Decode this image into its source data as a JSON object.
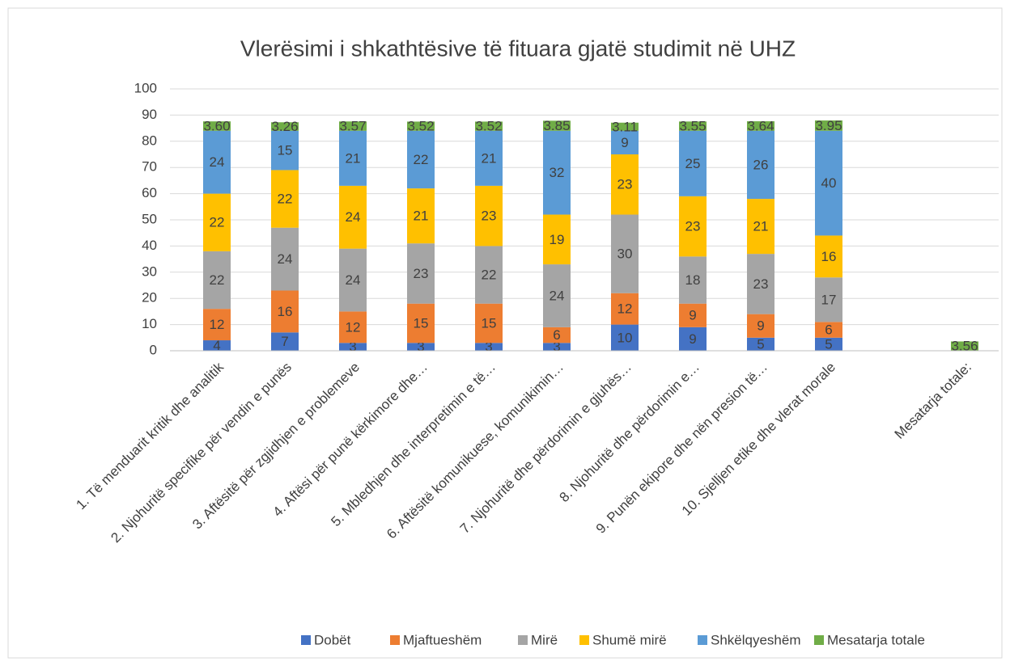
{
  "chart_data": {
    "type": "stacked-bar",
    "title": "Vlerësimi i shkathtësive të fituara gjatë studimit në UHZ",
    "categories": [
      "1. Të menduarit kritik dhe analitik",
      "2. Njohuritë specifike për vendin e punës",
      "3. Aftësitë për zgjidhjen e problemeve",
      "4. Aftësi për punë kërkimore dhe…",
      "5. Mbledhjen dhe interpretimin e të…",
      "6. Aftësitë komunikuese, komunikimin…",
      "7. Njohuritë dhe përdorimin e gjuhës…",
      "8. Njohuritë dhe përdorimin e…",
      "9. Punën ekipore dhe nën presion të…",
      "10. Sjelljen etike dhe vlerat morale",
      null,
      "Mesatarja totale:"
    ],
    "series": [
      {
        "name": "Dobët",
        "color": "#4472c4",
        "values": [
          4,
          7,
          3,
          3,
          3,
          3,
          10,
          9,
          5,
          5,
          null,
          null
        ]
      },
      {
        "name": "Mjaftueshëm",
        "color": "#ed7d31",
        "values": [
          12,
          16,
          12,
          15,
          15,
          6,
          12,
          9,
          9,
          6,
          null,
          null
        ]
      },
      {
        "name": "Mirë",
        "color": "#a5a5a5",
        "values": [
          22,
          24,
          24,
          23,
          22,
          24,
          30,
          18,
          23,
          17,
          null,
          null
        ]
      },
      {
        "name": "Shumë mirë",
        "color": "#ffc000",
        "values": [
          22,
          22,
          24,
          21,
          23,
          19,
          23,
          23,
          21,
          16,
          null,
          null
        ]
      },
      {
        "name": "Shkëlqyeshëm",
        "color": "#5b9bd5",
        "values": [
          24,
          15,
          21,
          22,
          21,
          32,
          9,
          25,
          26,
          40,
          null,
          null
        ]
      },
      {
        "name": "Mesatarja totale",
        "color": "#70ad47",
        "values": [
          3.6,
          3.26,
          3.57,
          3.52,
          3.52,
          3.85,
          3.11,
          3.55,
          3.64,
          3.95,
          null,
          3.56
        ],
        "value_labels": [
          "3.60",
          "3.26",
          "3.57",
          "3.52",
          "3.52",
          "3.85",
          "3.11",
          "3.55",
          "3.64",
          "3.95",
          null,
          "3.56"
        ]
      }
    ],
    "ylim": [
      0,
      100
    ],
    "yticks": [
      0,
      10,
      20,
      30,
      40,
      50,
      60,
      70,
      80,
      90,
      100
    ],
    "grid": true,
    "legend": "bottom"
  }
}
